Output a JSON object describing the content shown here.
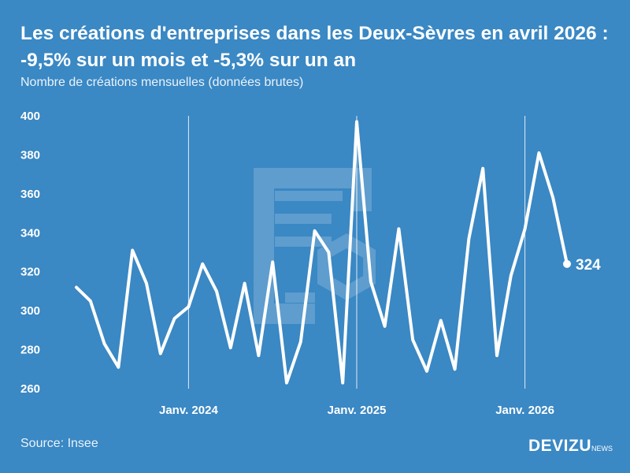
{
  "header": {
    "title": "Les créations d'entreprises dans les Deux-Sèvres en avril 2026 : -9,5% sur un mois et -5,3% sur un an",
    "subtitle": "Nombre de créations mensuelles (données brutes)"
  },
  "footer": {
    "source": "Source: Insee",
    "brand_main": "DEVIZU",
    "brand_sub": "NEWS"
  },
  "chart_data": {
    "type": "line",
    "title": "Les créations d'entreprises dans les Deux-Sèvres en avril 2026 : -9,5% sur un mois et -5,3% sur un an",
    "subtitle": "Nombre de créations mensuelles (données brutes)",
    "xlabel": "",
    "ylabel": "",
    "ylim": [
      260,
      400
    ],
    "y_ticks": [
      260,
      280,
      300,
      320,
      340,
      360,
      380,
      400
    ],
    "grid": false,
    "x_start": "2023-05",
    "x_end": "2026-04",
    "x_ticks": [
      {
        "date": "2024-01",
        "label": "Janv. 2024"
      },
      {
        "date": "2025-01",
        "label": "Janv. 2025"
      },
      {
        "date": "2026-01",
        "label": "Janv. 2026"
      }
    ],
    "series": [
      {
        "color": "#ffffff",
        "x": [
          "2023-05",
          "2023-06",
          "2023-07",
          "2023-08",
          "2023-09",
          "2023-10",
          "2023-11",
          "2023-12",
          "2024-01",
          "2024-02",
          "2024-03",
          "2024-04",
          "2024-05",
          "2024-06",
          "2024-07",
          "2024-08",
          "2024-09",
          "2024-10",
          "2024-11",
          "2024-12",
          "2025-01",
          "2025-02",
          "2025-03",
          "2025-04",
          "2025-05",
          "2025-06",
          "2025-07",
          "2025-08",
          "2025-09",
          "2025-10",
          "2025-11",
          "2025-12",
          "2026-01",
          "2026-02",
          "2026-03",
          "2026-04"
        ],
        "values": [
          312,
          305,
          283,
          271,
          331,
          314,
          278,
          296,
          302,
          324,
          310,
          281,
          314,
          277,
          325,
          263,
          284,
          341,
          330,
          263,
          397,
          315,
          292,
          342,
          285,
          269,
          295,
          270,
          337,
          373,
          277,
          318,
          342,
          381,
          358,
          324
        ]
      }
    ],
    "end_label": "324"
  }
}
